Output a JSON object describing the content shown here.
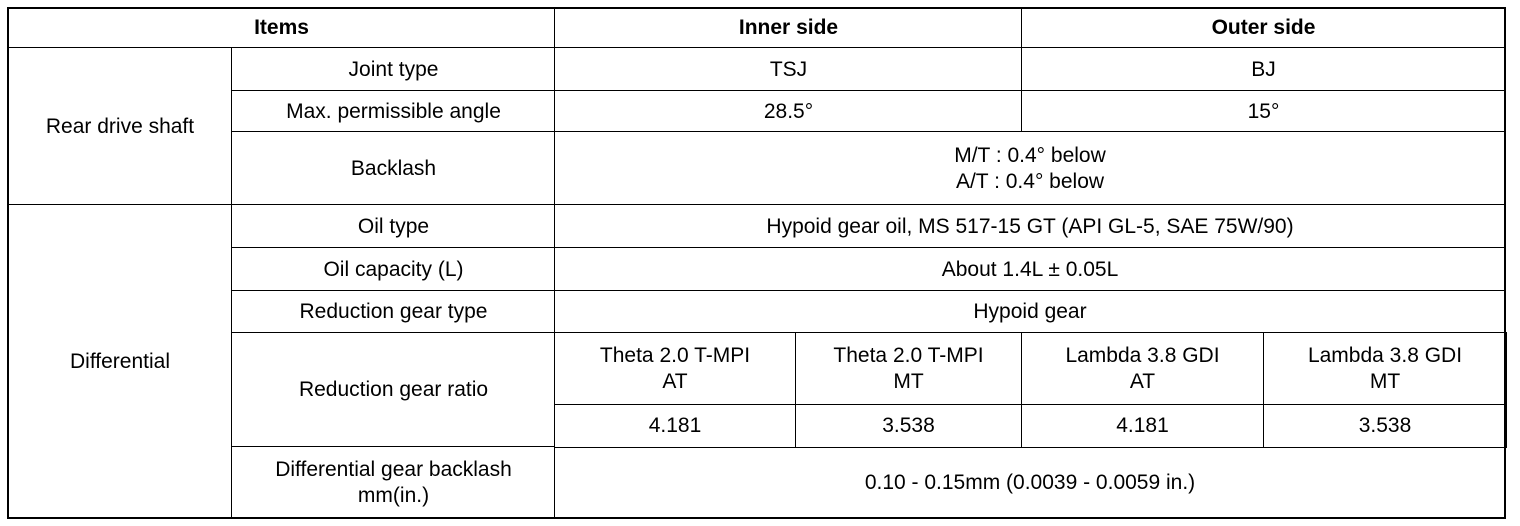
{
  "table": {
    "header": {
      "items": "Items",
      "inner": "Inner side",
      "outer": "Outer side"
    },
    "rear_drive_shaft": {
      "label": "Rear drive shaft",
      "joint_type": {
        "item": "Joint type",
        "inner": "TSJ",
        "outer": "BJ"
      },
      "max_angle": {
        "item": "Max. permissible angle",
        "inner": "28.5°",
        "outer": "15°"
      },
      "backlash": {
        "item": "Backlash",
        "value": [
          "M/T : 0.4° below",
          "A/T : 0.4° below"
        ]
      }
    },
    "differential": {
      "label": "Differential",
      "oil_type": {
        "item": "Oil type",
        "value": "Hypoid gear oil, MS 517-15 GT (API GL-5, SAE 75W/90)"
      },
      "oil_capacity": {
        "item": "Oil capacity (L)",
        "value": "About 1.4L ± 0.05L"
      },
      "reduction_gear_type": {
        "item": "Reduction gear type",
        "value": "Hypoid gear"
      },
      "reduction_gear_ratio": {
        "item": "Reduction gear ratio",
        "variants": [
          {
            "name": [
              "Theta 2.0 T-MPI",
              "AT"
            ],
            "ratio": "4.181"
          },
          {
            "name": [
              "Theta 2.0 T-MPI",
              "MT"
            ],
            "ratio": "3.538"
          },
          {
            "name": [
              "Lambda 3.8 GDI",
              "AT"
            ],
            "ratio": "4.181"
          },
          {
            "name": [
              "Lambda 3.8 GDI",
              "MT"
            ],
            "ratio": "3.538"
          }
        ]
      },
      "gear_backlash": {
        "item": "Differential gear backlash mm(in.)",
        "value": "0.10 - 0.15mm (0.0039 - 0.0059 in.)"
      }
    }
  }
}
